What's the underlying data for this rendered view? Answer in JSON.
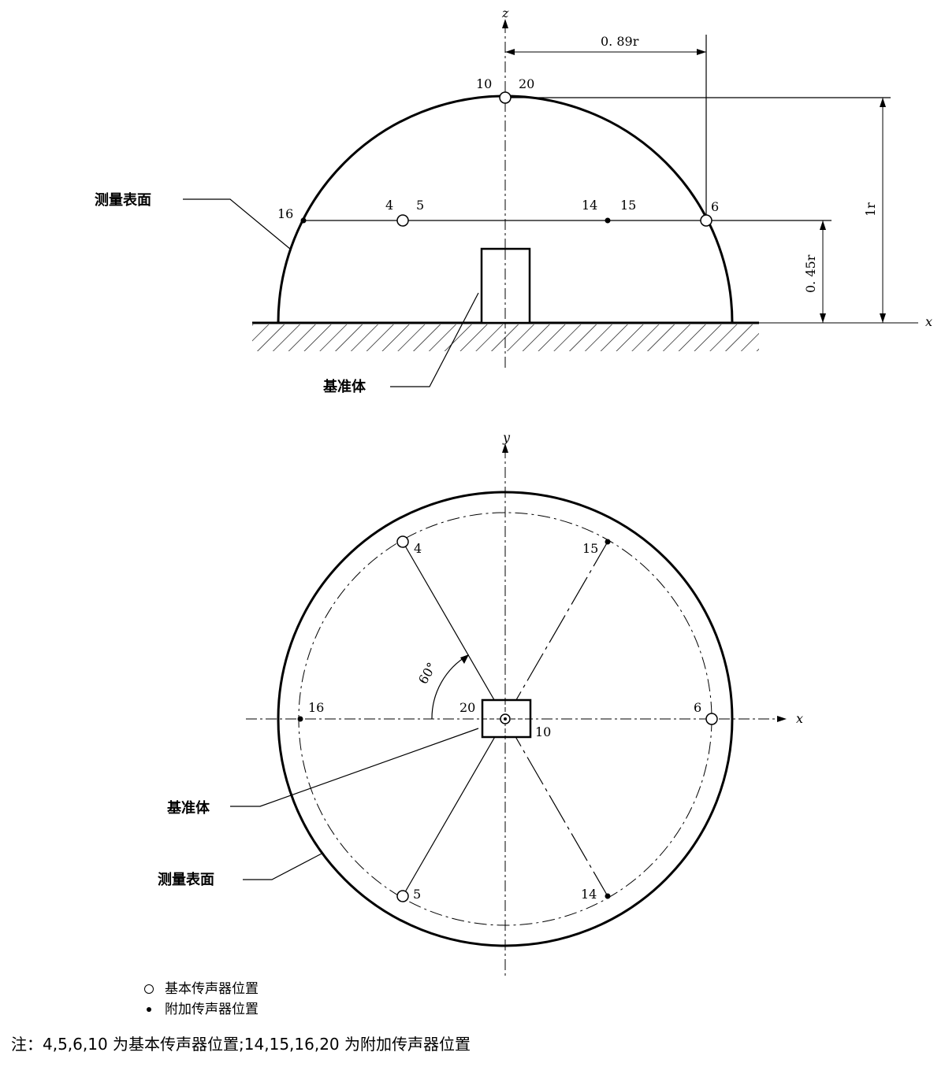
{
  "side_view": {
    "axis_z": "z",
    "axis_x": "x",
    "dim_top": "0. 89r",
    "dim_height": "1r",
    "dim_mid": "0. 45r",
    "label_surface": "测量表面",
    "label_reference": "基准体",
    "points": {
      "p10": "10",
      "p20": "20",
      "p16": "16",
      "p4": "4",
      "p5": "5",
      "p14": "14",
      "p15": "15",
      "p6": "6"
    }
  },
  "plan_view": {
    "axis_y": "y",
    "axis_x": "x",
    "angle": "60°",
    "label_surface": "测量表面",
    "label_reference": "基准体",
    "points": {
      "p4": "4",
      "p15": "15",
      "p16": "16",
      "p20": "20",
      "p10": "10",
      "p6": "6",
      "p5": "5",
      "p14": "14"
    }
  },
  "legend": {
    "basic": "基本传声器位置",
    "additional": "附加传声器位置"
  },
  "note": "注：4,5,6,10 为基本传声器位置;14,15,16,20 为附加传声器位置"
}
